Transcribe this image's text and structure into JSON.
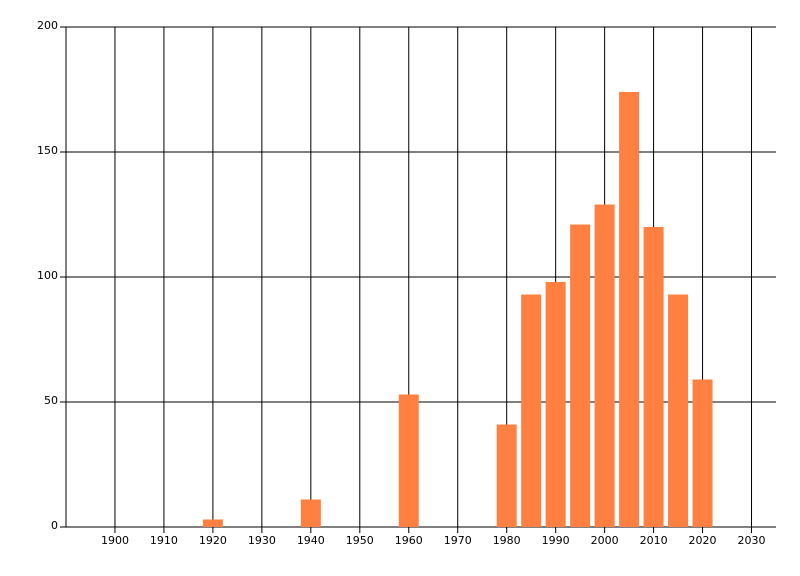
{
  "chart_data": {
    "type": "bar",
    "x": [
      1920,
      1940,
      1960,
      1980,
      1985,
      1990,
      1995,
      2000,
      2005,
      2010,
      2015,
      2020
    ],
    "values": [
      3,
      11,
      53,
      41,
      93,
      98,
      121,
      129,
      174,
      120,
      93,
      59
    ],
    "color": "#ff8040",
    "xlim": [
      1890,
      2035
    ],
    "xticks": [
      1900,
      1910,
      1920,
      1930,
      1940,
      1950,
      1960,
      1970,
      1980,
      1990,
      2000,
      2010,
      2020,
      2030
    ],
    "ylim": [
      0,
      200
    ],
    "yticks": [
      0,
      50,
      100,
      150,
      200
    ],
    "grid": true
  }
}
